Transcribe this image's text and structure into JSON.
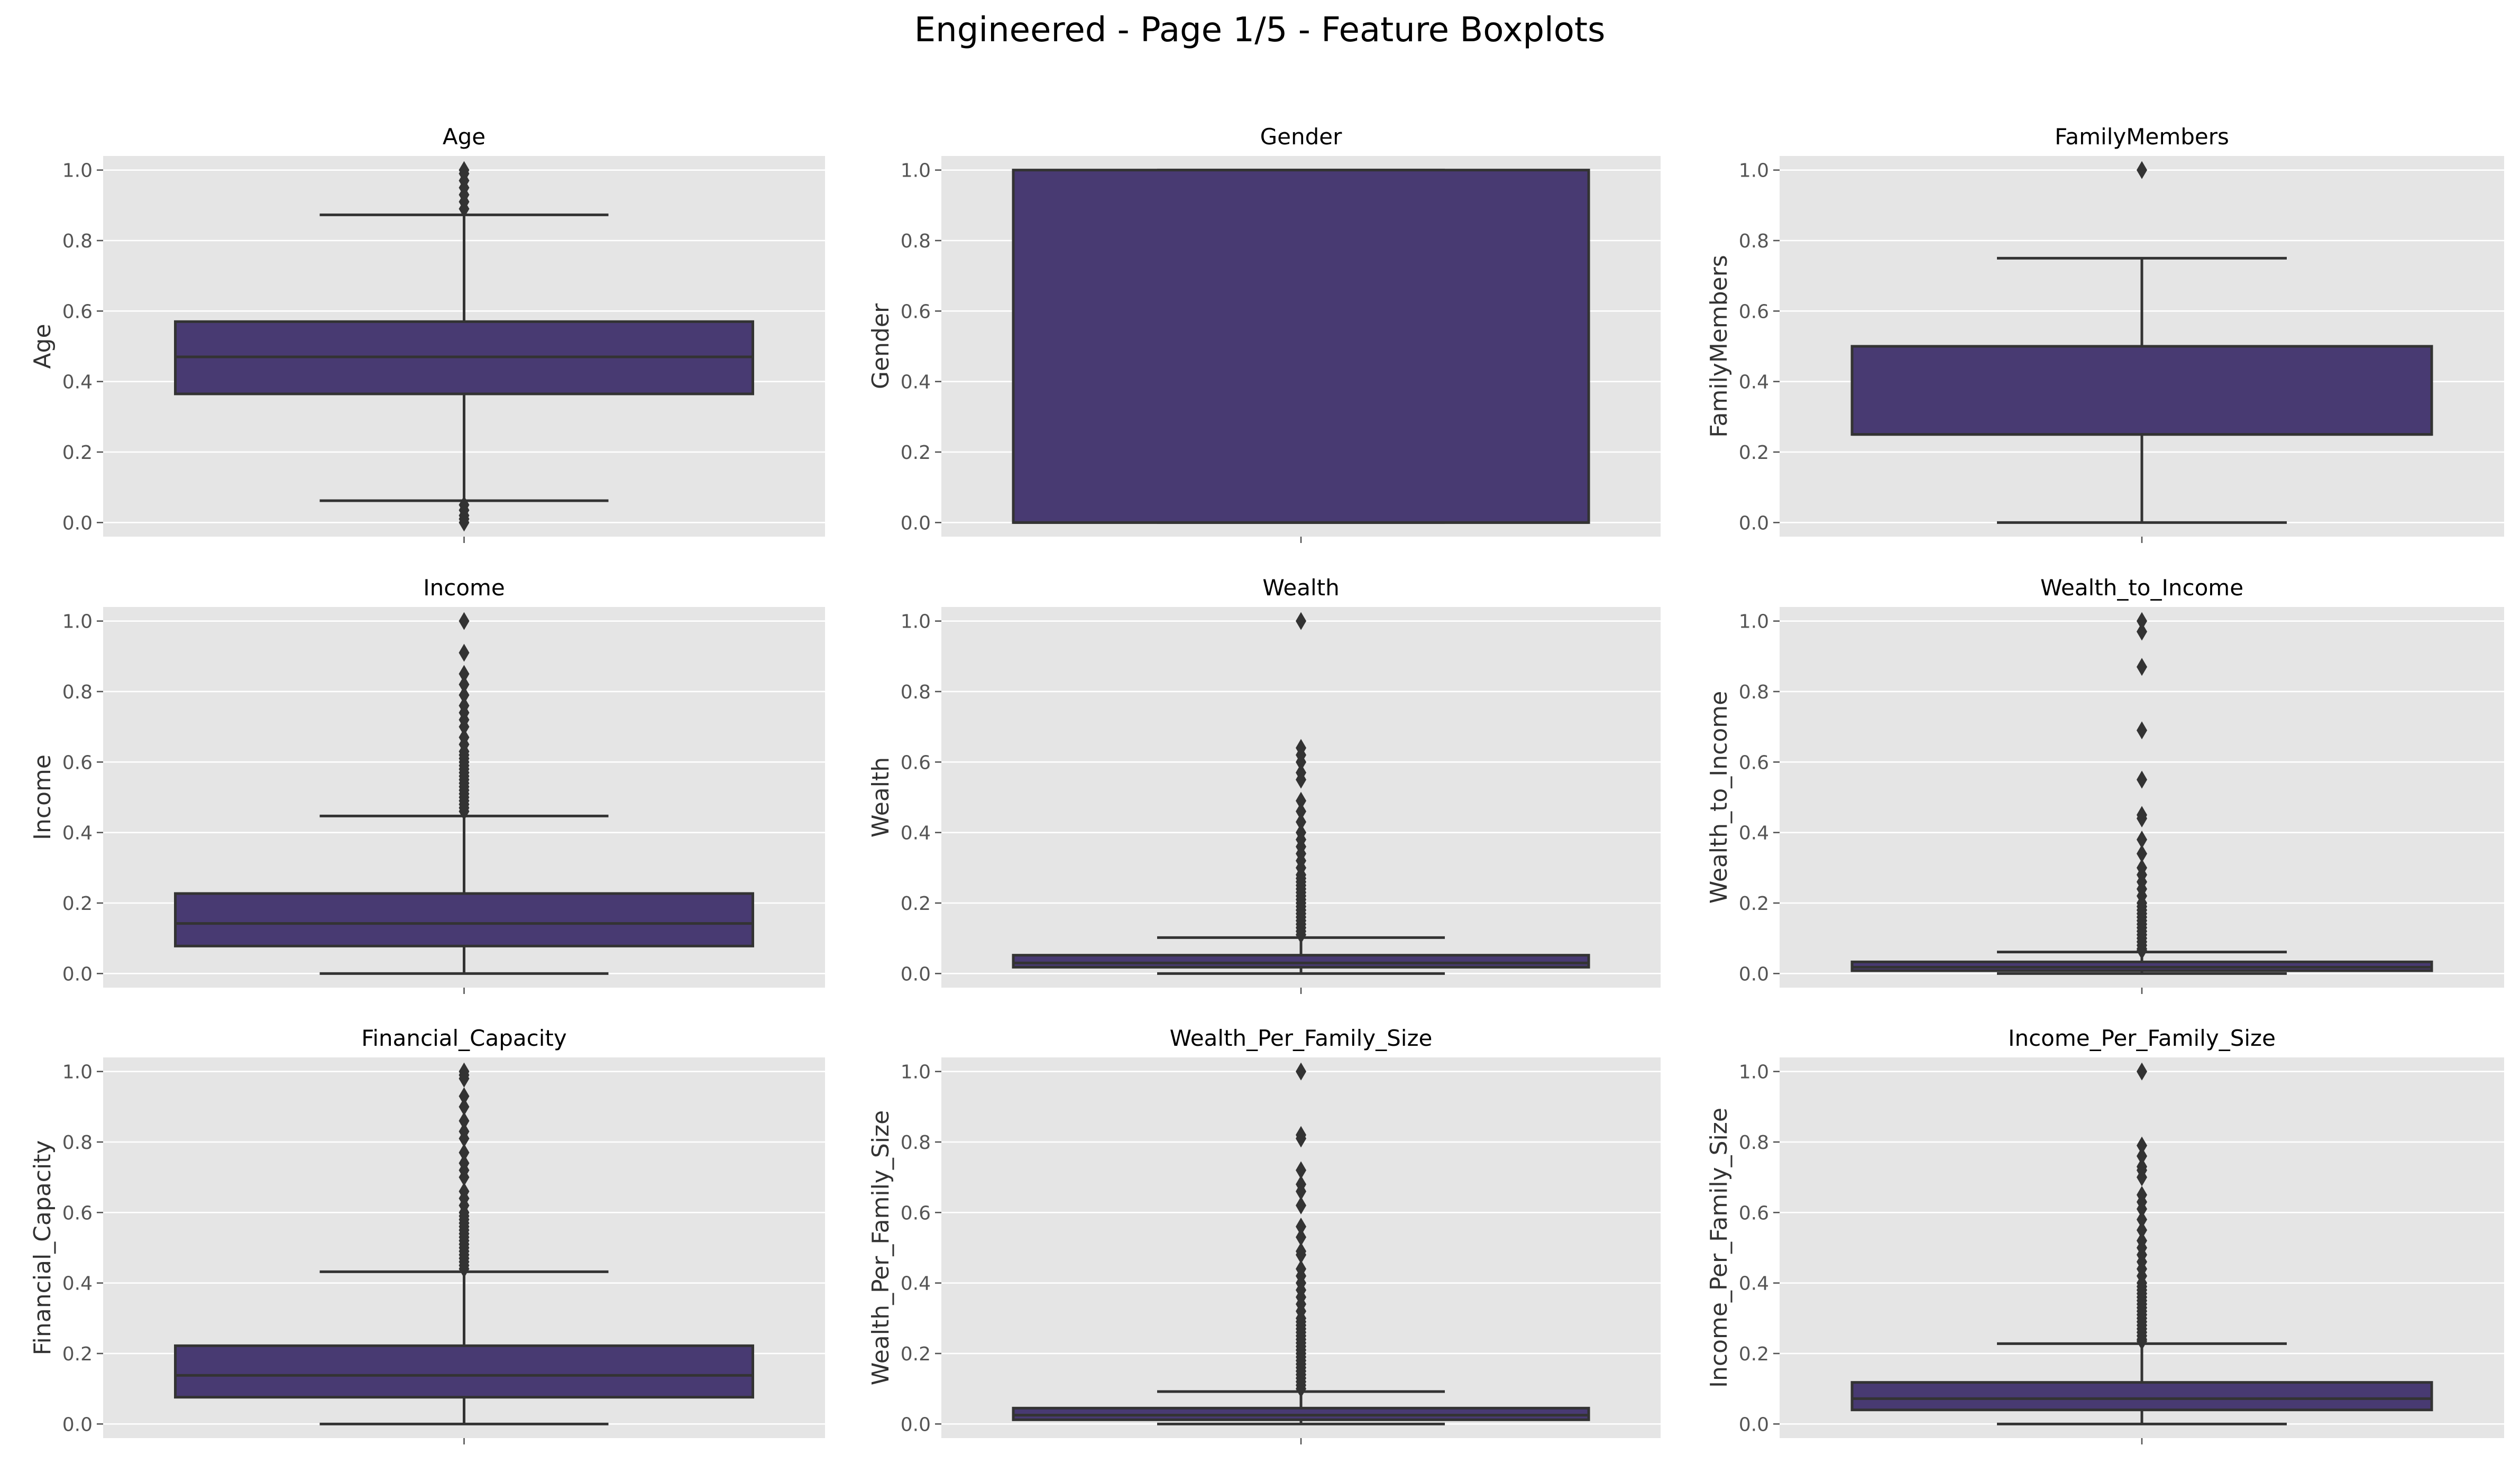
{
  "figure": {
    "title": "Engineered - Page 1/5 - Feature Boxplots"
  },
  "colors": {
    "box_fill": "#483a72",
    "box_edge": "#333333",
    "panel_background": "#e5e5e5",
    "grid": "#ffffff"
  },
  "chart_data": [
    {
      "type": "box",
      "title": "Age",
      "ylabel": "Age",
      "ylim": [
        -0.04,
        1.04
      ],
      "yticks": [
        "0.0",
        "0.2",
        "0.4",
        "0.6",
        "0.8",
        "1.0"
      ],
      "grid": true,
      "box": {
        "q1": 0.365,
        "median": 0.47,
        "q3": 0.57,
        "whisker_low": 0.062,
        "whisker_high": 0.873
      },
      "outliers": [
        0.0,
        0.01,
        0.02,
        0.035,
        0.05,
        0.89,
        0.91,
        0.93,
        0.95,
        0.97,
        0.99,
        1.0
      ]
    },
    {
      "type": "box",
      "title": "Gender",
      "ylabel": "Gender",
      "ylim": [
        -0.04,
        1.04
      ],
      "yticks": [
        "0.0",
        "0.2",
        "0.4",
        "0.6",
        "0.8",
        "1.0"
      ],
      "grid": true,
      "box": {
        "q1": 0.0,
        "median": 0.0,
        "q3": 1.0,
        "whisker_low": 0.0,
        "whisker_high": 1.0
      },
      "outliers": []
    },
    {
      "type": "box",
      "title": "FamilyMembers",
      "ylabel": "FamilyMembers",
      "ylim": [
        -0.04,
        1.04
      ],
      "yticks": [
        "0.0",
        "0.2",
        "0.4",
        "0.6",
        "0.8",
        "1.0"
      ],
      "grid": true,
      "box": {
        "q1": 0.25,
        "median": 0.25,
        "q3": 0.5,
        "whisker_low": 0.0,
        "whisker_high": 0.75
      },
      "outliers": [
        1.0
      ]
    },
    {
      "type": "box",
      "title": "Income",
      "ylabel": "Income",
      "ylim": [
        -0.04,
        1.04
      ],
      "yticks": [
        "0.0",
        "0.2",
        "0.4",
        "0.6",
        "0.8",
        "1.0"
      ],
      "grid": true,
      "box": {
        "q1": 0.078,
        "median": 0.142,
        "q3": 0.227,
        "whisker_low": 0.0,
        "whisker_high": 0.447
      },
      "outliers": [
        0.46,
        0.47,
        0.48,
        0.49,
        0.5,
        0.51,
        0.52,
        0.53,
        0.54,
        0.55,
        0.56,
        0.57,
        0.58,
        0.59,
        0.6,
        0.61,
        0.62,
        0.63,
        0.65,
        0.67,
        0.7,
        0.72,
        0.74,
        0.76,
        0.79,
        0.82,
        0.85,
        0.91,
        1.0
      ]
    },
    {
      "type": "box",
      "title": "Wealth",
      "ylabel": "Wealth",
      "ylim": [
        -0.04,
        1.04
      ],
      "yticks": [
        "0.0",
        "0.2",
        "0.4",
        "0.6",
        "0.8",
        "1.0"
      ],
      "grid": true,
      "box": {
        "q1": 0.018,
        "median": 0.03,
        "q3": 0.052,
        "whisker_low": 0.0,
        "whisker_high": 0.102
      },
      "outliers": [
        0.11,
        0.12,
        0.13,
        0.14,
        0.15,
        0.16,
        0.17,
        0.18,
        0.19,
        0.2,
        0.21,
        0.22,
        0.23,
        0.24,
        0.25,
        0.26,
        0.27,
        0.28,
        0.3,
        0.32,
        0.34,
        0.36,
        0.38,
        0.4,
        0.43,
        0.46,
        0.49,
        0.55,
        0.57,
        0.6,
        0.62,
        0.64,
        1.0
      ]
    },
    {
      "type": "box",
      "title": "Wealth_to_Income",
      "ylabel": "Wealth_to_Income",
      "ylim": [
        -0.04,
        1.04
      ],
      "yticks": [
        "0.0",
        "0.2",
        "0.4",
        "0.6",
        "0.8",
        "1.0"
      ],
      "grid": true,
      "box": {
        "q1": 0.008,
        "median": 0.018,
        "q3": 0.033,
        "whisker_low": 0.0,
        "whisker_high": 0.061
      },
      "outliers": [
        0.065,
        0.07,
        0.08,
        0.09,
        0.1,
        0.11,
        0.12,
        0.13,
        0.14,
        0.15,
        0.16,
        0.17,
        0.18,
        0.19,
        0.2,
        0.22,
        0.24,
        0.26,
        0.28,
        0.3,
        0.34,
        0.38,
        0.44,
        0.45,
        0.55,
        0.69,
        0.87,
        0.97,
        1.0
      ]
    },
    {
      "type": "box",
      "title": "Financial_Capacity",
      "ylabel": "Financial_Capacity",
      "ylim": [
        -0.04,
        1.04
      ],
      "yticks": [
        "0.0",
        "0.2",
        "0.4",
        "0.6",
        "0.8",
        "1.0"
      ],
      "grid": true,
      "box": {
        "q1": 0.076,
        "median": 0.138,
        "q3": 0.222,
        "whisker_low": 0.0,
        "whisker_high": 0.432
      },
      "outliers": [
        0.44,
        0.45,
        0.46,
        0.47,
        0.48,
        0.49,
        0.5,
        0.51,
        0.52,
        0.53,
        0.54,
        0.55,
        0.56,
        0.57,
        0.58,
        0.59,
        0.6,
        0.62,
        0.64,
        0.66,
        0.7,
        0.72,
        0.74,
        0.77,
        0.81,
        0.83,
        0.86,
        0.9,
        0.93,
        0.98,
        0.99,
        1.0
      ]
    },
    {
      "type": "box",
      "title": "Wealth_Per_Family_Size",
      "ylabel": "Wealth_Per_Family_Size",
      "ylim": [
        -0.04,
        1.04
      ],
      "yticks": [
        "0.0",
        "0.2",
        "0.4",
        "0.6",
        "0.8",
        "1.0"
      ],
      "grid": true,
      "box": {
        "q1": 0.012,
        "median": 0.025,
        "q3": 0.045,
        "whisker_low": 0.0,
        "whisker_high": 0.092
      },
      "outliers": [
        0.1,
        0.11,
        0.12,
        0.13,
        0.14,
        0.15,
        0.16,
        0.17,
        0.18,
        0.19,
        0.2,
        0.21,
        0.22,
        0.23,
        0.24,
        0.25,
        0.26,
        0.27,
        0.28,
        0.29,
        0.3,
        0.32,
        0.34,
        0.36,
        0.38,
        0.4,
        0.42,
        0.44,
        0.48,
        0.49,
        0.53,
        0.56,
        0.62,
        0.66,
        0.68,
        0.72,
        0.81,
        0.82,
        1.0
      ]
    },
    {
      "type": "box",
      "title": "Income_Per_Family_Size",
      "ylabel": "Income_Per_Family_Size",
      "ylim": [
        -0.04,
        1.04
      ],
      "yticks": [
        "0.0",
        "0.2",
        "0.4",
        "0.6",
        "0.8",
        "1.0"
      ],
      "grid": true,
      "box": {
        "q1": 0.04,
        "median": 0.072,
        "q3": 0.118,
        "whisker_low": 0.0,
        "whisker_high": 0.228
      },
      "outliers": [
        0.235,
        0.24,
        0.25,
        0.26,
        0.27,
        0.28,
        0.29,
        0.3,
        0.31,
        0.32,
        0.33,
        0.34,
        0.35,
        0.36,
        0.37,
        0.38,
        0.39,
        0.4,
        0.42,
        0.44,
        0.46,
        0.48,
        0.5,
        0.52,
        0.55,
        0.58,
        0.61,
        0.63,
        0.65,
        0.7,
        0.72,
        0.73,
        0.76,
        0.79,
        1.0
      ]
    }
  ]
}
